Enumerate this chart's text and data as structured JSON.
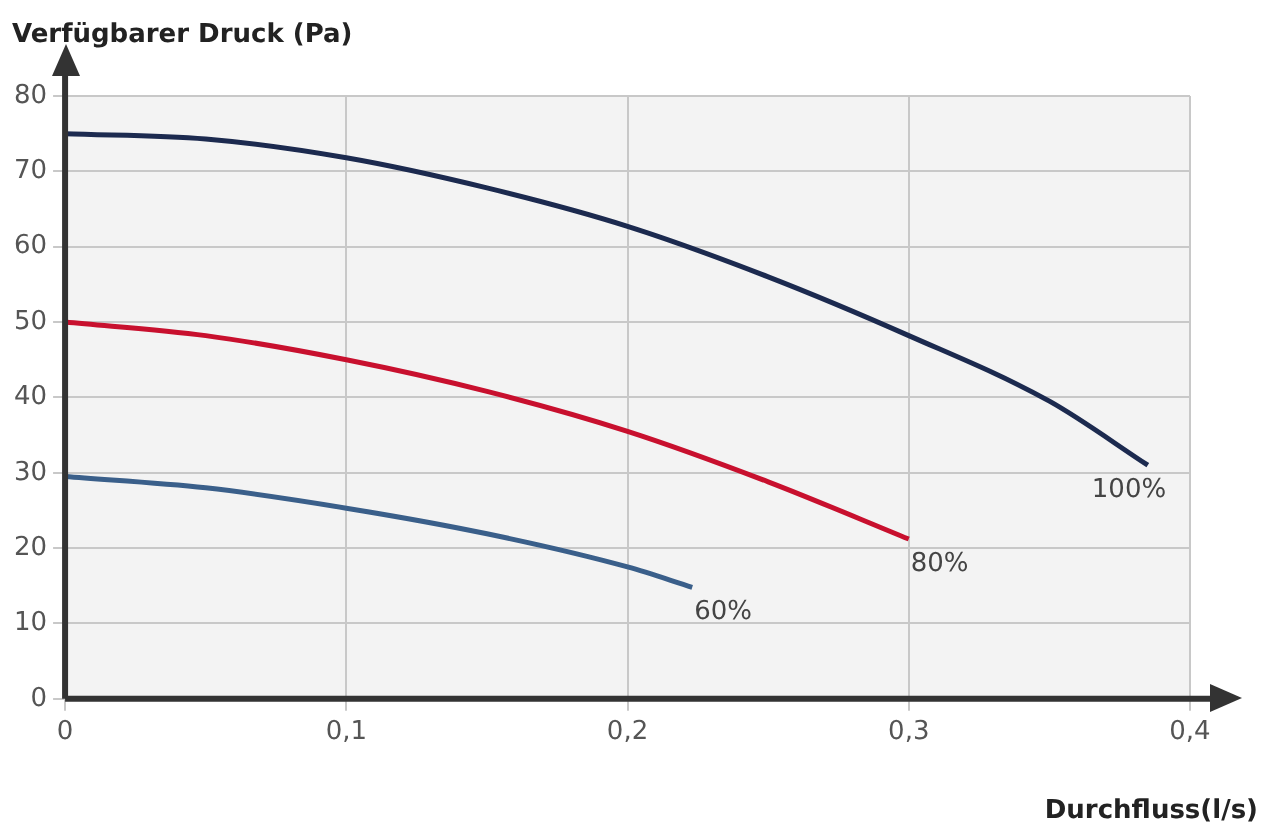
{
  "chart_data": {
    "type": "line",
    "ylabel": "Verfügbarer Druck (Pa)",
    "xlabel": "Durchfluss(l/s)",
    "xlim": [
      0,
      0.4
    ],
    "xticks": [
      0,
      {
        "value": 0.1,
        "label": "0,1"
      },
      {
        "value": 0.2,
        "label": "0,2"
      },
      {
        "value": 0.3,
        "label": "0,3"
      },
      {
        "value": 0.4,
        "label": "0,4"
      }
    ],
    "ylim": [
      0,
      80
    ],
    "yticks": [
      0,
      10,
      20,
      30,
      40,
      50,
      60,
      70,
      80
    ],
    "grid": true,
    "legend": false,
    "marker": "none",
    "line_style": "solid",
    "series": [
      {
        "name": "100%",
        "color": "#1c2a4f",
        "x": [
          0,
          0.05,
          0.1,
          0.15,
          0.2,
          0.25,
          0.3,
          0.35,
          0.385
        ],
        "values": [
          75,
          74.3,
          71.8,
          67.8,
          62.7,
          56,
          48.2,
          39.5,
          31
        ]
      },
      {
        "name": "80%",
        "color": "#c8102e",
        "x": [
          0,
          0.05,
          0.1,
          0.15,
          0.2,
          0.25,
          0.3
        ],
        "values": [
          50,
          48.2,
          45,
          40.8,
          35.5,
          28.8,
          21.2
        ]
      },
      {
        "name": "60%",
        "color": "#3a5f8a",
        "x": [
          0,
          0.05,
          0.1,
          0.15,
          0.2,
          0.223
        ],
        "values": [
          29.5,
          28,
          25.3,
          21.9,
          17.5,
          14.8
        ]
      }
    ]
  }
}
